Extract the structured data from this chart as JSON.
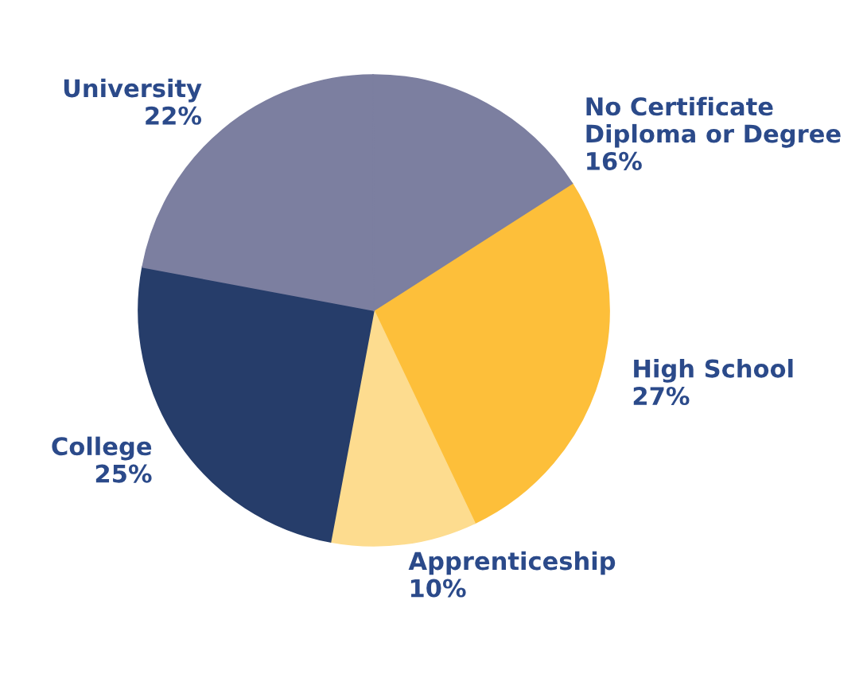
{
  "chart_data": {
    "type": "pie",
    "categories": [
      "High School",
      "Apprenticeship",
      "College",
      "University",
      "No Certificate\nDiploma or Degree"
    ],
    "values": [
      27,
      10,
      25,
      22,
      16
    ],
    "value_labels": [
      "27%",
      "10%",
      "25%",
      "22%",
      "16%"
    ],
    "colors": [
      "#fdbf3a",
      "#fddc8f",
      "#263d6a",
      "#7c7fa0",
      "#7c7fa0"
    ]
  }
}
